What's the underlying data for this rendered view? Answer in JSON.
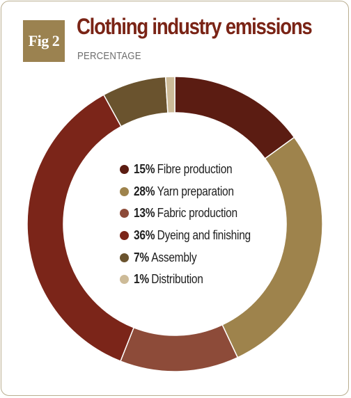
{
  "figure": {
    "badge": "Fig 2",
    "title": "Clothing industry emissions",
    "subtitle": "PERCENTAGE"
  },
  "chart_data": {
    "type": "pie",
    "style": "donut",
    "unit": "%",
    "slices": [
      {
        "label": "Fibre production",
        "value": 15,
        "value_label": "15%",
        "color": "#5b1c12"
      },
      {
        "label": "Yarn preparation",
        "value": 28,
        "value_label": "28%",
        "color": "#9e834c"
      },
      {
        "label": "Fabric production",
        "value": 13,
        "value_label": "13%",
        "color": "#8d4b39"
      },
      {
        "label": "Dyeing and finishing",
        "value": 36,
        "value_label": "36%",
        "color": "#7b2519"
      },
      {
        "label": "Assembly",
        "value": 7,
        "value_label": "7%",
        "color": "#6a532e"
      },
      {
        "label": "Distribution",
        "value": 1,
        "value_label": "1%",
        "color": "#cdbb98"
      }
    ],
    "legend_position": "center"
  }
}
